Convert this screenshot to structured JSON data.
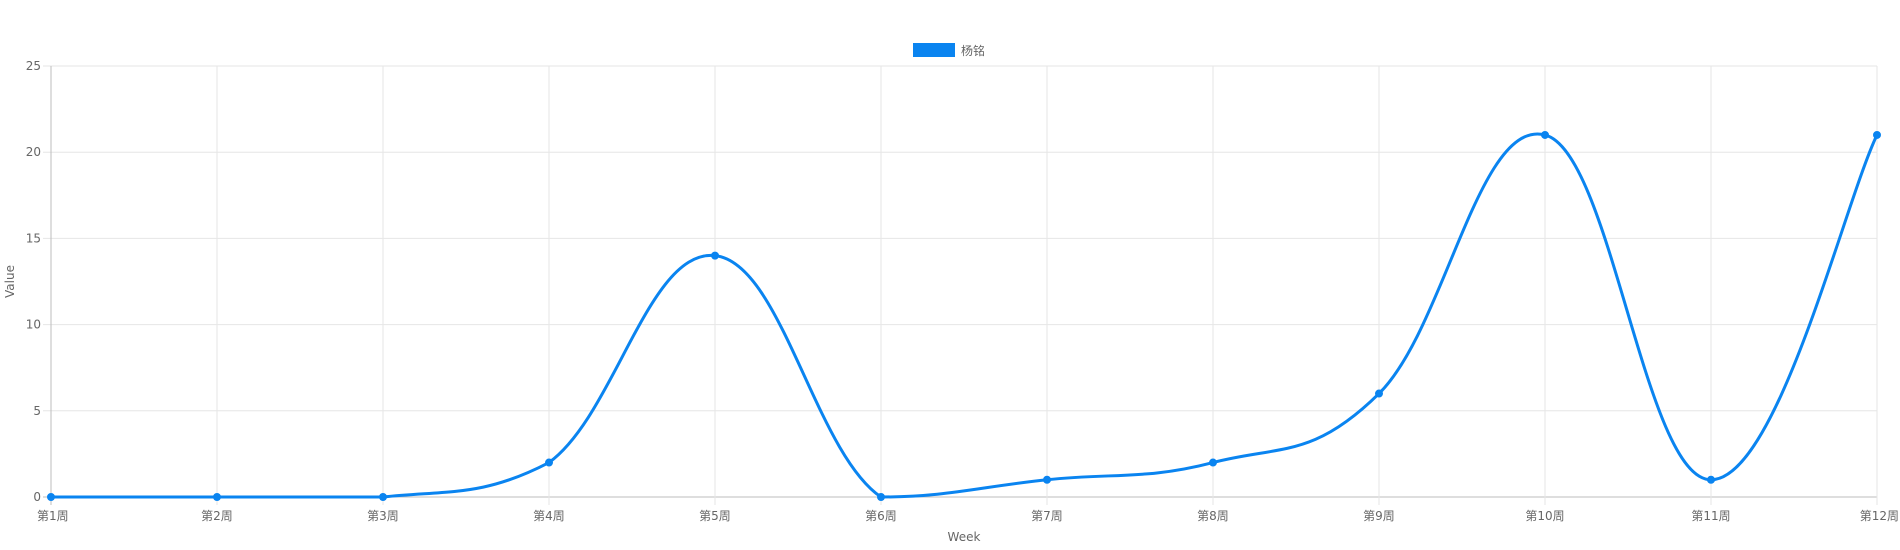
{
  "chart_data": {
    "type": "line",
    "title": "",
    "xlabel": "Week",
    "ylabel": "Value",
    "categories": [
      "第1周",
      "第2周",
      "第3周",
      "第4周",
      "第5周",
      "第6周",
      "第7周",
      "第8周",
      "第9周",
      "第10周",
      "第11周",
      "第12周"
    ],
    "series": [
      {
        "name": "杨铭",
        "color": "#0a84f0",
        "values": [
          0,
          0,
          0,
          2,
          14,
          0,
          1,
          2,
          6,
          21,
          1,
          21
        ]
      }
    ],
    "ylim": [
      0,
      25
    ],
    "yticks": [
      0,
      5,
      10,
      15,
      20,
      25
    ],
    "grid": true,
    "smooth": true,
    "legend_position": "top-center"
  }
}
